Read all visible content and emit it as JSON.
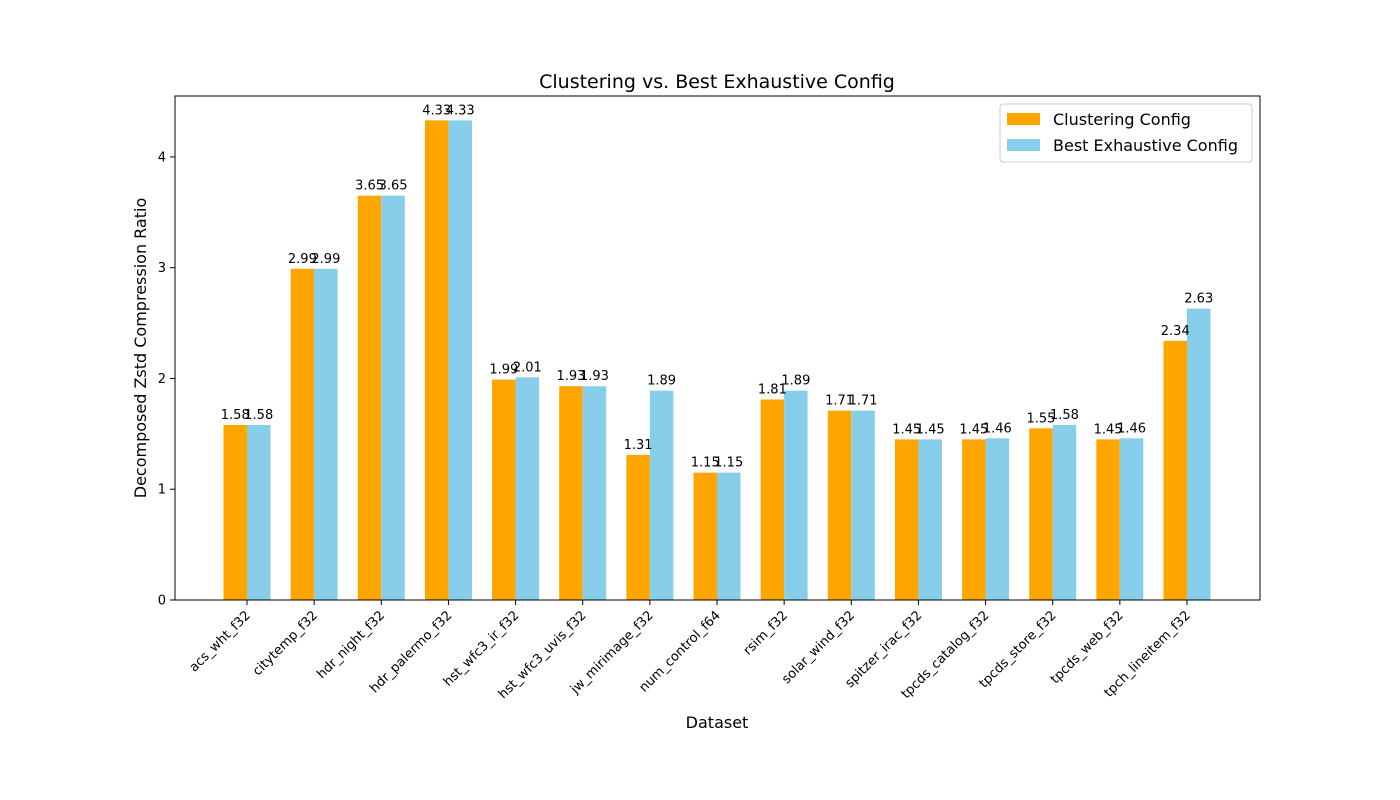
{
  "chart_data": {
    "type": "bar",
    "title": "Clustering vs. Best Exhaustive Config",
    "xlabel": "Dataset",
    "ylabel": "Decomposed Zstd Compression Ratio",
    "ylim": [
      0,
      4.55
    ],
    "yticks": [
      0,
      1,
      2,
      3,
      4
    ],
    "grid": false,
    "legend_position": "top-right",
    "categories": [
      "acs_wht_f32",
      "citytemp_f32",
      "hdr_night_f32",
      "hdr_palermo_f32",
      "hst_wfc3_ir_f32",
      "hst_wfc3_uvis_f32",
      "jw_mirimage_f32",
      "num_control_f64",
      "rsim_f32",
      "solar_wind_f32",
      "spitzer_irac_f32",
      "tpcds_catalog_f32",
      "tpcds_store_f32",
      "tpcds_web_f32",
      "tpch_lineitem_f32"
    ],
    "series": [
      {
        "name": "Clustering Config",
        "color": "#ffa500",
        "values": [
          1.58,
          2.99,
          3.65,
          4.33,
          1.99,
          1.93,
          1.31,
          1.15,
          1.81,
          1.71,
          1.45,
          1.45,
          1.55,
          1.45,
          2.34
        ],
        "labels": [
          "1.58",
          "2.99",
          "3.65",
          "4.33",
          "1.99",
          "1.93",
          "1.31",
          "1.15",
          "1.81",
          "1.71",
          "1.45",
          "1.45",
          "1.55",
          "1.45",
          "2.34"
        ]
      },
      {
        "name": "Best Exhaustive Config",
        "color": "#87ceeb",
        "values": [
          1.58,
          2.99,
          3.65,
          4.33,
          2.01,
          1.93,
          1.89,
          1.15,
          1.89,
          1.71,
          1.45,
          1.46,
          1.58,
          1.46,
          2.63
        ],
        "labels": [
          "1.58",
          "2.99",
          "3.65",
          "4.33",
          "2.01",
          "1.93",
          "1.89",
          "1.15",
          "1.89",
          "1.71",
          "1.45",
          "1.46",
          "1.58",
          "1.46",
          "2.63"
        ]
      }
    ]
  }
}
